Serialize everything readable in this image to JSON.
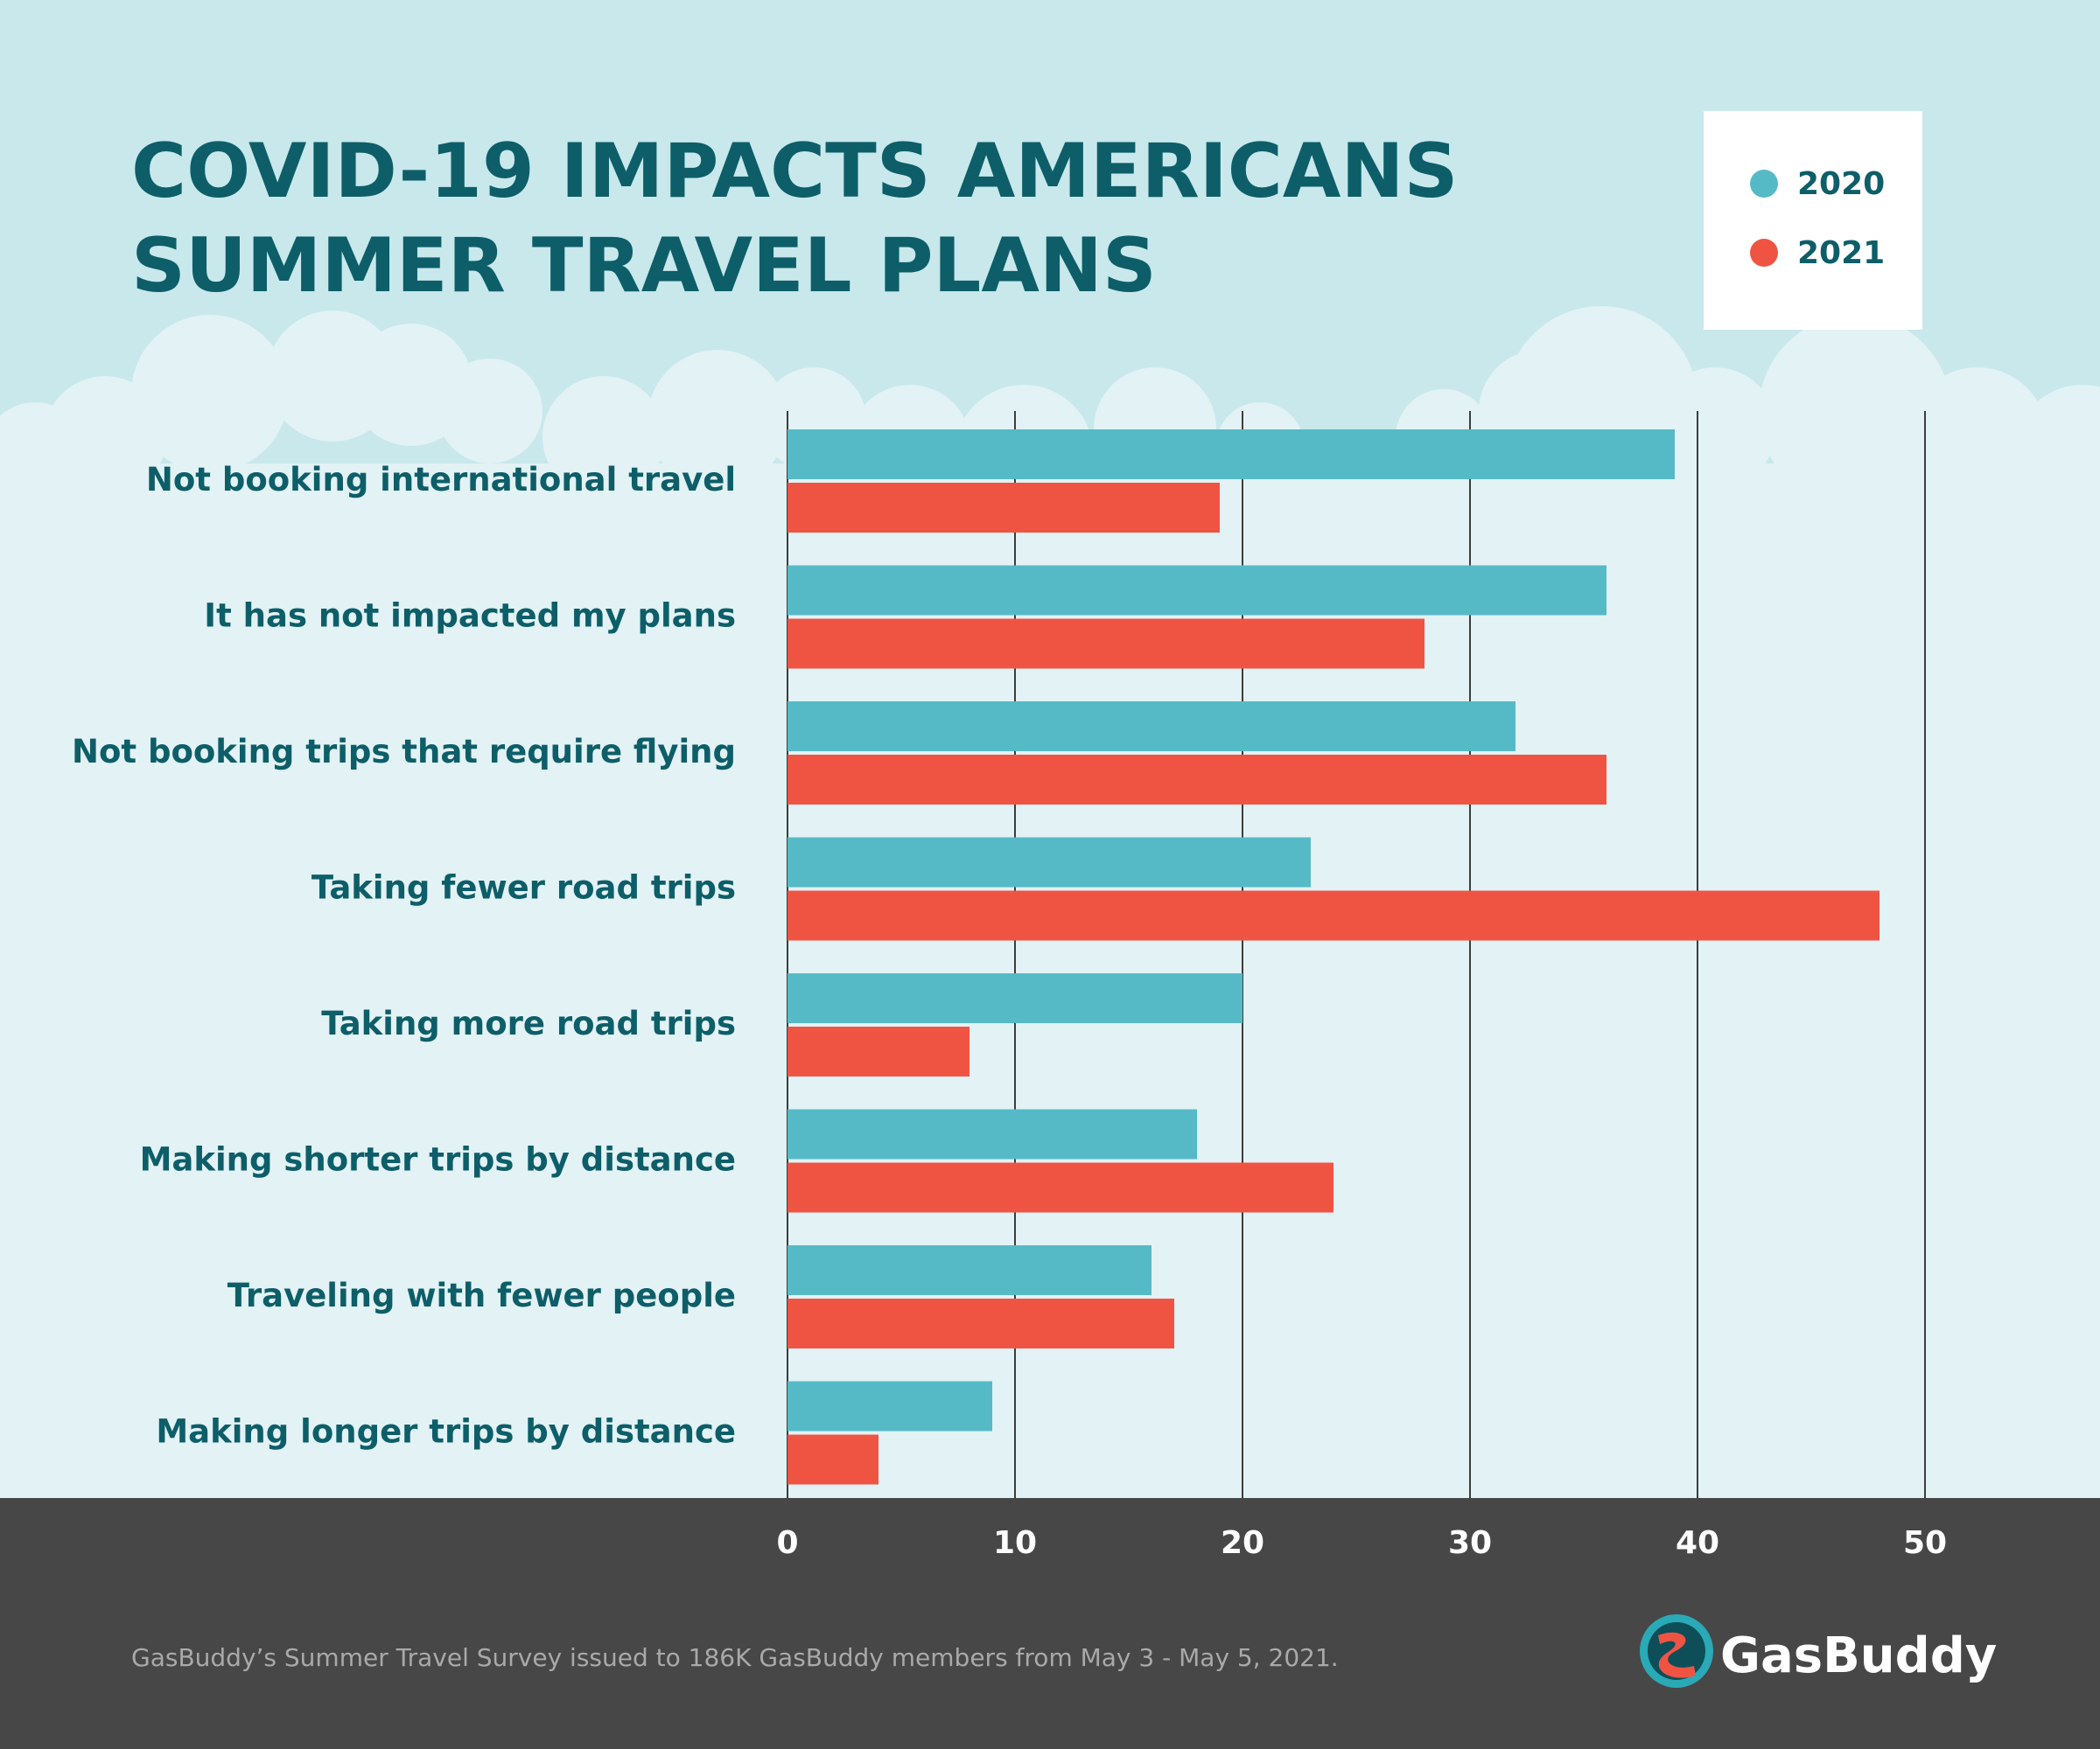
{
  "title_lines": [
    "COVID-19 IMPACTS AMERICANS",
    "SUMMER TRAVEL PLANS"
  ],
  "legend": [
    {
      "label": "2020",
      "color": "#56bac6"
    },
    {
      "label": "2021",
      "color": "#ef5443"
    }
  ],
  "colors": {
    "sky": "#c8e8ec",
    "cloud": "#e2f2f5",
    "footer": "#474747",
    "title": "#0d5e68",
    "gridline": "#3d3d3d"
  },
  "chart_data": {
    "type": "bar",
    "orientation": "horizontal",
    "title": "COVID-19 IMPACTS AMERICANS SUMMER TRAVEL PLANS",
    "categories": [
      "Not booking international travel",
      "It has not impacted my plans",
      "Not booking trips that require flying",
      "Taking fewer road trips",
      "Taking more road trips",
      "Making shorter trips by distance",
      "Traveling with fewer people",
      "Making longer trips by distance"
    ],
    "series": [
      {
        "name": "2020",
        "color": "#56bac6",
        "values": [
          39,
          36,
          32,
          23,
          20,
          18,
          16,
          9
        ]
      },
      {
        "name": "2021",
        "color": "#ef5443",
        "values": [
          19,
          28,
          36,
          48,
          8,
          24,
          17,
          4
        ]
      }
    ],
    "xlim": [
      0,
      50
    ],
    "xticks": [
      0,
      10,
      20,
      30,
      40,
      50
    ],
    "grid": true,
    "legend_position": "top-right"
  },
  "footer": {
    "note": "GasBuddy’s Summer Travel Survey issued to 186K GasBuddy members from May 3 - May 5, 2021.",
    "brand": "GasBuddy",
    "logo_icon": "gasbuddy-road-logo-icon"
  }
}
